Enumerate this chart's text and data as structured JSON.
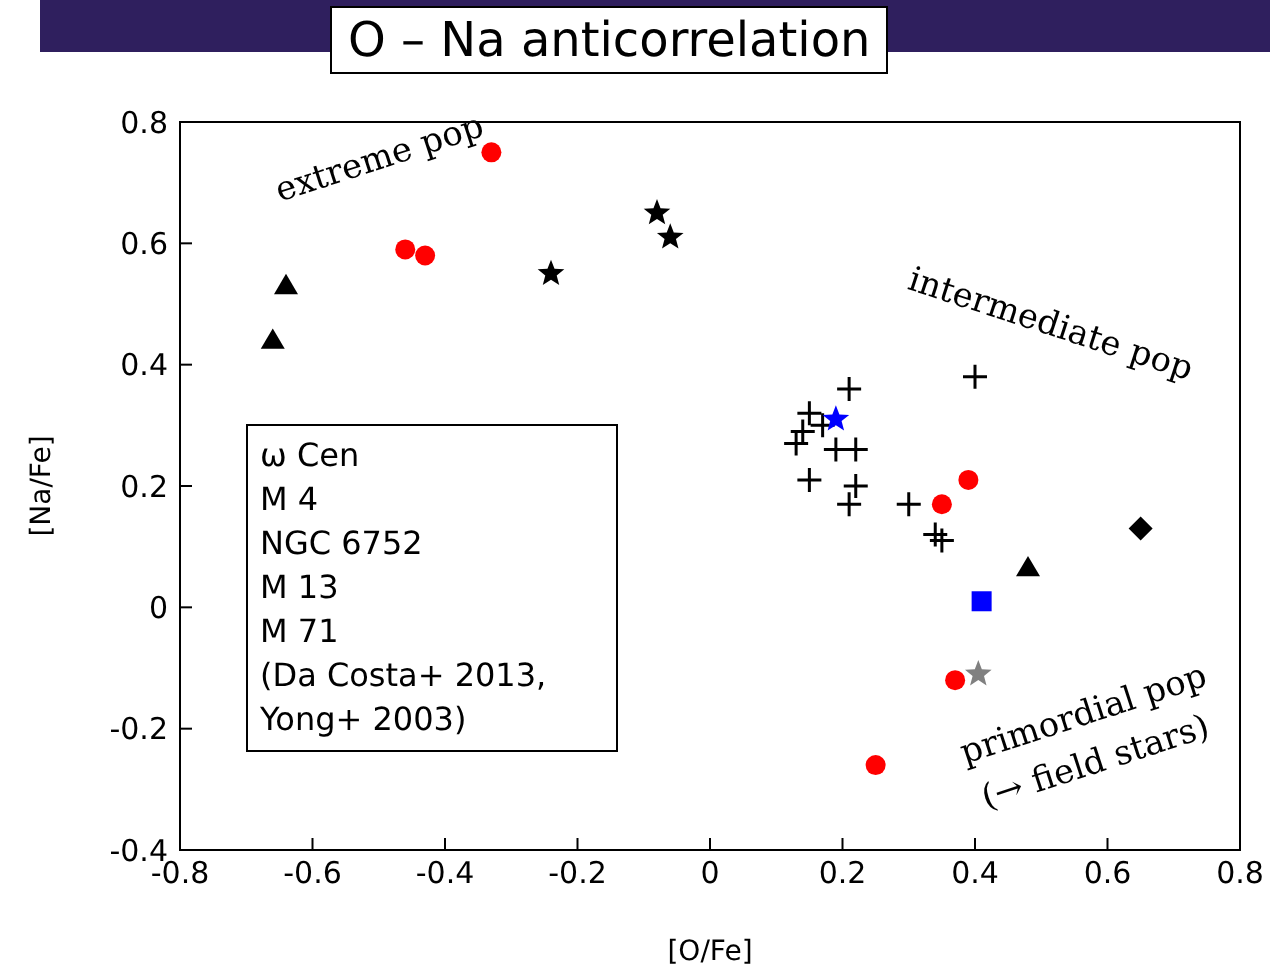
{
  "chart_data": {
    "type": "scatter",
    "title": "O – Na anticorrelation",
    "xlabel": "[O/Fe]",
    "ylabel": "[Na/Fe]",
    "xlim": [
      -0.8,
      0.8
    ],
    "xticks": [
      -0.8,
      -0.6,
      -0.4,
      -0.2,
      0,
      0.2,
      0.4,
      0.6,
      0.8
    ],
    "ylim": [
      -0.4,
      0.8
    ],
    "yticks": [
      -0.4,
      -0.2,
      0,
      0.2,
      0.4,
      0.6,
      0.8
    ],
    "grid": false,
    "legend": false,
    "series": [
      {
        "color": "#000000",
        "marker": "triangle",
        "x": [
          -0.66,
          -0.64
        ],
        "values": [
          0.44,
          0.53
        ]
      },
      {
        "color": "#ff0000",
        "marker": "circle",
        "x": [
          -0.46,
          -0.43,
          -0.33
        ],
        "values": [
          0.59,
          0.58,
          0.75
        ]
      },
      {
        "color": "#000000",
        "marker": "star",
        "x": [
          -0.24,
          -0.08,
          -0.06
        ],
        "values": [
          0.55,
          0.65,
          0.61
        ]
      },
      {
        "color": "#000000",
        "marker": "cross",
        "x": [
          0.21,
          0.15,
          0.17,
          0.14,
          0.13,
          0.19,
          0.22,
          0.15,
          0.22,
          0.21,
          0.3,
          0.34,
          0.35
        ],
        "values": [
          0.36,
          0.32,
          0.3,
          0.29,
          0.27,
          0.26,
          0.26,
          0.21,
          0.2,
          0.17,
          0.17,
          0.12,
          0.11
        ]
      },
      {
        "color": "#0000ff",
        "marker": "star",
        "x": [
          0.19
        ],
        "values": [
          0.31
        ]
      },
      {
        "color": "#000000",
        "marker": "cross",
        "x": [
          0.4
        ],
        "values": [
          0.38
        ]
      },
      {
        "color": "#ff0000",
        "marker": "circle",
        "x": [
          0.39,
          0.35,
          0.37,
          0.25
        ],
        "values": [
          0.21,
          0.17,
          -0.12,
          -0.26
        ]
      },
      {
        "color": "#000000",
        "marker": "diamond",
        "x": [
          0.65
        ],
        "values": [
          0.13
        ]
      },
      {
        "color": "#000000",
        "marker": "triangle",
        "x": [
          0.48
        ],
        "values": [
          0.065
        ]
      },
      {
        "color": "#0000ff",
        "marker": "square",
        "x": [
          0.41
        ],
        "values": [
          0.01
        ]
      },
      {
        "color": "#808080",
        "marker": "star",
        "x": [
          0.405
        ],
        "values": [
          -0.11
        ]
      }
    ],
    "annotations": [
      "extreme pop",
      "intermediate pop",
      "primordial pop",
      "(→ field stars)",
      "ω Cen",
      "M 4",
      "NGC 6752",
      "M 13",
      "M 71",
      "(Da Costa+ 2013,",
      "Yong+ 2003)"
    ]
  }
}
